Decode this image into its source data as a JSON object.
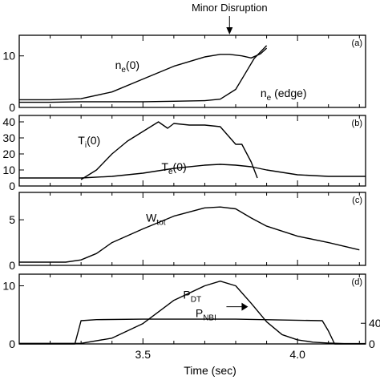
{
  "annotation": {
    "text": "Minor Disruption",
    "x": 3.78
  },
  "x_axis": {
    "label": "Time (sec)",
    "range": [
      3.1,
      4.22
    ],
    "ticks": [
      3.5,
      4.0
    ]
  },
  "chart_data": [
    {
      "type": "line",
      "panel": "(a)",
      "ylim": [
        0,
        14
      ],
      "yticks": [
        0,
        10
      ],
      "series": [
        {
          "name": "n_e(0)",
          "x": [
            3.1,
            3.2,
            3.3,
            3.4,
            3.5,
            3.6,
            3.7,
            3.75,
            3.78,
            3.82,
            3.85,
            3.88,
            3.9
          ],
          "y": [
            1.5,
            1.5,
            1.7,
            3.0,
            5.5,
            8.0,
            9.8,
            10.3,
            10.3,
            10.0,
            9.6,
            10.4,
            11.5
          ]
        },
        {
          "name": "n_e (edge)",
          "x": [
            3.1,
            3.2,
            3.3,
            3.4,
            3.5,
            3.6,
            3.7,
            3.75,
            3.8,
            3.83,
            3.86,
            3.9
          ],
          "y": [
            1.0,
            1.0,
            1.1,
            1.1,
            1.1,
            1.2,
            1.3,
            1.6,
            3.5,
            6.5,
            9.5,
            12.0
          ]
        }
      ],
      "labels": [
        {
          "main": "n",
          "sub": "e",
          "tail": "(0)",
          "x": 3.41,
          "y": 7.5
        },
        {
          "main": "n",
          "sub": "e",
          "tail": " (edge)",
          "x": 3.88,
          "y": 2.0
        }
      ]
    },
    {
      "type": "line",
      "panel": "(b)",
      "ylim": [
        0,
        44
      ],
      "yticks": [
        0,
        10,
        20,
        30,
        40
      ],
      "series": [
        {
          "name": "T_i(0)",
          "x": [
            3.3,
            3.35,
            3.4,
            3.45,
            3.5,
            3.55,
            3.58,
            3.6,
            3.65,
            3.7,
            3.75,
            3.8,
            3.82,
            3.85,
            3.87
          ],
          "y": [
            4,
            10,
            20,
            28,
            34,
            40,
            36,
            39,
            38,
            38,
            37,
            26,
            26,
            15,
            5
          ]
        },
        {
          "name": "T_e(0)",
          "x": [
            3.1,
            3.2,
            3.3,
            3.4,
            3.5,
            3.6,
            3.7,
            3.75,
            3.8,
            3.85,
            3.9,
            4.0,
            4.1,
            4.22
          ],
          "y": [
            5,
            5,
            5,
            6,
            8,
            11,
            13,
            13.5,
            13,
            12,
            10,
            7,
            6,
            6
          ]
        }
      ],
      "labels": [
        {
          "main": "T",
          "sub": "i",
          "tail": "(0)",
          "x": 3.29,
          "y": 26
        },
        {
          "main": "T",
          "sub": "e",
          "tail": "(0)",
          "x": 3.56,
          "y": 9.5
        }
      ]
    },
    {
      "type": "line",
      "panel": "(c)",
      "ylim": [
        0,
        8
      ],
      "yticks": [
        0,
        5
      ],
      "series": [
        {
          "name": "W_tot",
          "x": [
            3.1,
            3.25,
            3.3,
            3.35,
            3.4,
            3.5,
            3.6,
            3.7,
            3.75,
            3.8,
            3.85,
            3.9,
            4.0,
            4.1,
            4.2
          ],
          "y": [
            0.35,
            0.35,
            0.6,
            1.3,
            2.5,
            4.0,
            5.4,
            6.3,
            6.4,
            6.2,
            5.2,
            4.3,
            3.2,
            2.5,
            1.7
          ]
        }
      ],
      "labels": [
        {
          "main": "W",
          "sub": "tot",
          "tail": "",
          "x": 3.51,
          "y": 4.8
        }
      ]
    },
    {
      "type": "line",
      "panel": "(d)",
      "ylim": [
        0,
        12
      ],
      "yticks": [
        0,
        10
      ],
      "right_axis": {
        "ticks": [
          0,
          40
        ],
        "ylim": [
          0,
          135
        ]
      },
      "series": [
        {
          "name": "P_DT",
          "x": [
            3.1,
            3.3,
            3.4,
            3.5,
            3.6,
            3.7,
            3.75,
            3.8,
            3.85,
            3.9,
            3.95,
            4.0,
            4.05,
            4.1,
            4.15,
            4.22
          ],
          "y": [
            0.1,
            0.1,
            1.0,
            3.5,
            7.5,
            10.0,
            10.8,
            10.0,
            7.0,
            3.8,
            1.6,
            0.7,
            0.3,
            0.15,
            0.05,
            0.05
          ]
        },
        {
          "name": "P_NBI",
          "x": [
            3.1,
            3.28,
            3.3,
            3.35,
            3.5,
            3.8,
            4.08,
            4.1,
            4.12,
            4.22
          ],
          "y": [
            0,
            0,
            45,
            47,
            48,
            48,
            45,
            25,
            0,
            0
          ]
        }
      ],
      "labels": [
        {
          "main": "P",
          "sub": "DT",
          "tail": "",
          "x": 3.63,
          "y": 7.8
        },
        {
          "main": "P",
          "sub": "NBI",
          "tail": "",
          "x": 3.67,
          "y": 4.6
        }
      ],
      "arrow": {
        "x1": 3.77,
        "x2": 3.84,
        "y": 6.4
      }
    }
  ]
}
